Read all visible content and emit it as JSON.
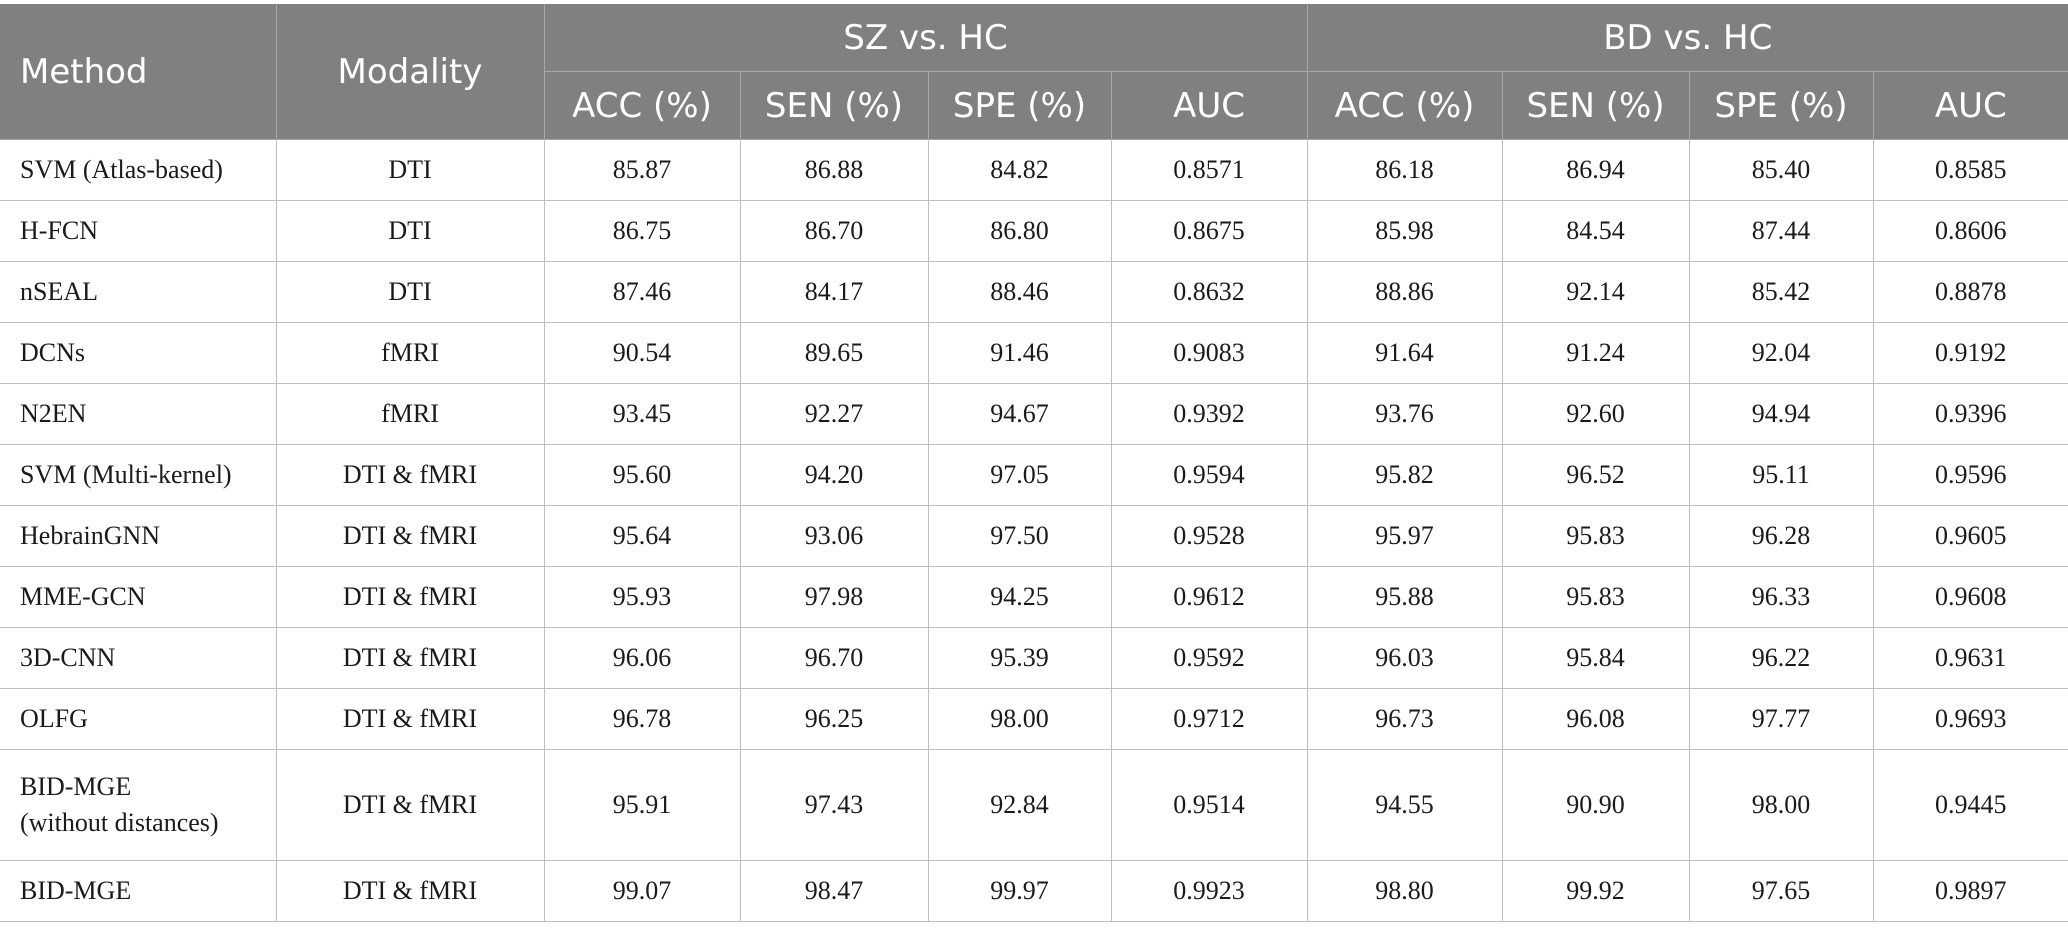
{
  "table": {
    "header": {
      "method": "Method",
      "modality": "Modality",
      "groups": [
        "SZ vs. HC",
        "BD vs. HC"
      ],
      "metrics": [
        "ACC (%)",
        "SEN (%)",
        "SPE (%)",
        "AUC",
        "ACC (%)",
        "SEN (%)",
        "SPE (%)",
        "AUC"
      ]
    },
    "rows": [
      {
        "method": [
          "SVM (Atlas-based)"
        ],
        "modality": "DTI",
        "values": [
          "85.87",
          "86.88",
          "84.82",
          "0.8571",
          "86.18",
          "86.94",
          "85.40",
          "0.8585"
        ]
      },
      {
        "method": [
          "H-FCN"
        ],
        "modality": "DTI",
        "values": [
          "86.75",
          "86.70",
          "86.80",
          "0.8675",
          "85.98",
          "84.54",
          "87.44",
          "0.8606"
        ]
      },
      {
        "method": [
          "nSEAL"
        ],
        "modality": "DTI",
        "values": [
          "87.46",
          "84.17",
          "88.46",
          "0.8632",
          "88.86",
          "92.14",
          "85.42",
          "0.8878"
        ]
      },
      {
        "method": [
          "DCNs"
        ],
        "modality": "fMRI",
        "values": [
          "90.54",
          "89.65",
          "91.46",
          "0.9083",
          "91.64",
          "91.24",
          "92.04",
          "0.9192"
        ]
      },
      {
        "method": [
          "N2EN"
        ],
        "modality": "fMRI",
        "values": [
          "93.45",
          "92.27",
          "94.67",
          "0.9392",
          "93.76",
          "92.60",
          "94.94",
          "0.9396"
        ]
      },
      {
        "method": [
          "SVM (Multi-kernel)"
        ],
        "modality": "DTI & fMRI",
        "values": [
          "95.60",
          "94.20",
          "97.05",
          "0.9594",
          "95.82",
          "96.52",
          "95.11",
          "0.9596"
        ]
      },
      {
        "method": [
          "HebrainGNN"
        ],
        "modality": "DTI & fMRI",
        "values": [
          "95.64",
          "93.06",
          "97.50",
          "0.9528",
          "95.97",
          "95.83",
          "96.28",
          "0.9605"
        ]
      },
      {
        "method": [
          "MME-GCN"
        ],
        "modality": "DTI & fMRI",
        "values": [
          "95.93",
          "97.98",
          "94.25",
          "0.9612",
          "95.88",
          "95.83",
          "96.33",
          "0.9608"
        ]
      },
      {
        "method": [
          "3D-CNN"
        ],
        "modality": "DTI & fMRI",
        "values": [
          "96.06",
          "96.70",
          "95.39",
          "0.9592",
          "96.03",
          "95.84",
          "96.22",
          "0.9631"
        ]
      },
      {
        "method": [
          "OLFG"
        ],
        "modality": "DTI & fMRI",
        "values": [
          "96.78",
          "96.25",
          "98.00",
          "0.9712",
          "96.73",
          "96.08",
          "97.77",
          "0.9693"
        ]
      },
      {
        "method": [
          "BID-MGE",
          "(without distances)"
        ],
        "modality": "DTI & fMRI",
        "values": [
          "95.91",
          "97.43",
          "92.84",
          "0.9514",
          "94.55",
          "90.90",
          "98.00",
          "0.9445"
        ]
      },
      {
        "method": [
          "BID-MGE"
        ],
        "modality": "DTI & fMRI",
        "values": [
          "99.07",
          "98.47",
          "99.97",
          "0.9923",
          "98.80",
          "99.92",
          "97.65",
          "0.9897"
        ]
      }
    ]
  }
}
